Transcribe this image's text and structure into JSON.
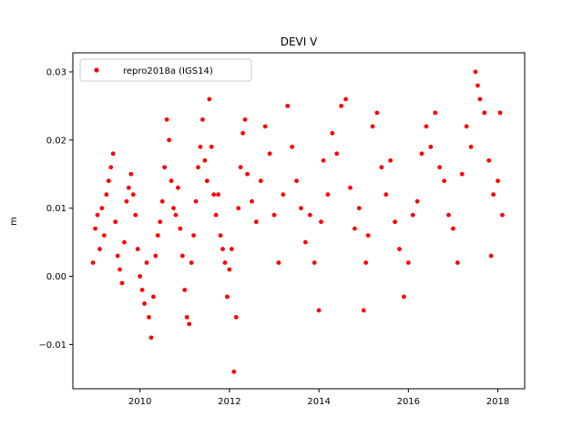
{
  "chart_data": {
    "type": "scatter",
    "title": "DEVI V",
    "xlabel": "",
    "ylabel": "m",
    "xlim": [
      2008.5,
      2018.6
    ],
    "ylim": [
      -0.0165,
      0.0328
    ],
    "x_ticks": [
      2010,
      2012,
      2014,
      2016,
      2018
    ],
    "x_tick_labels": [
      "2010",
      "2012",
      "2014",
      "2016",
      "2018"
    ],
    "y_ticks": [
      -0.01,
      0.0,
      0.01,
      0.02,
      0.03
    ],
    "y_tick_labels": [
      "−0.01",
      "0.00",
      "0.01",
      "0.02",
      "0.03"
    ],
    "grid": false,
    "legend_position": "upper left",
    "series": [
      {
        "name": "repro2018a (IGS14)",
        "color": "#ff0000",
        "marker": "dot",
        "points": [
          [
            2008.95,
            0.002
          ],
          [
            2009.0,
            0.007
          ],
          [
            2009.05,
            0.009
          ],
          [
            2009.1,
            0.004
          ],
          [
            2009.15,
            0.01
          ],
          [
            2009.2,
            0.006
          ],
          [
            2009.25,
            0.012
          ],
          [
            2009.3,
            0.014
          ],
          [
            2009.35,
            0.016
          ],
          [
            2009.4,
            0.018
          ],
          [
            2009.45,
            0.008
          ],
          [
            2009.5,
            0.003
          ],
          [
            2009.55,
            0.001
          ],
          [
            2009.6,
            -0.001
          ],
          [
            2009.65,
            0.005
          ],
          [
            2009.7,
            0.011
          ],
          [
            2009.75,
            0.013
          ],
          [
            2009.8,
            0.015
          ],
          [
            2009.85,
            0.012
          ],
          [
            2009.9,
            0.009
          ],
          [
            2009.95,
            0.004
          ],
          [
            2010.0,
            0.0
          ],
          [
            2010.05,
            -0.002
          ],
          [
            2010.1,
            -0.004
          ],
          [
            2010.15,
            0.002
          ],
          [
            2010.2,
            -0.006
          ],
          [
            2010.25,
            -0.009
          ],
          [
            2010.3,
            -0.003
          ],
          [
            2010.35,
            0.003
          ],
          [
            2010.4,
            0.006
          ],
          [
            2010.45,
            0.008
          ],
          [
            2010.5,
            0.011
          ],
          [
            2010.55,
            0.016
          ],
          [
            2010.6,
            0.023
          ],
          [
            2010.65,
            0.02
          ],
          [
            2010.7,
            0.014
          ],
          [
            2010.75,
            0.01
          ],
          [
            2010.8,
            0.009
          ],
          [
            2010.85,
            0.013
          ],
          [
            2010.9,
            0.007
          ],
          [
            2010.95,
            0.003
          ],
          [
            2011.0,
            -0.002
          ],
          [
            2011.05,
            -0.006
          ],
          [
            2011.1,
            -0.007
          ],
          [
            2011.15,
            0.002
          ],
          [
            2011.2,
            0.006
          ],
          [
            2011.25,
            0.011
          ],
          [
            2011.3,
            0.016
          ],
          [
            2011.35,
            0.019
          ],
          [
            2011.4,
            0.023
          ],
          [
            2011.45,
            0.017
          ],
          [
            2011.5,
            0.014
          ],
          [
            2011.55,
            0.026
          ],
          [
            2011.6,
            0.019
          ],
          [
            2011.65,
            0.012
          ],
          [
            2011.7,
            0.009
          ],
          [
            2011.75,
            0.012
          ],
          [
            2011.8,
            0.006
          ],
          [
            2011.85,
            0.004
          ],
          [
            2011.9,
            0.002
          ],
          [
            2011.95,
            -0.003
          ],
          [
            2012.0,
            0.001
          ],
          [
            2012.05,
            0.004
          ],
          [
            2012.1,
            -0.014
          ],
          [
            2012.15,
            -0.006
          ],
          [
            2012.2,
            0.01
          ],
          [
            2012.25,
            0.016
          ],
          [
            2012.3,
            0.021
          ],
          [
            2012.35,
            0.023
          ],
          [
            2012.4,
            0.015
          ],
          [
            2012.5,
            0.011
          ],
          [
            2012.6,
            0.008
          ],
          [
            2012.7,
            0.014
          ],
          [
            2012.8,
            0.022
          ],
          [
            2012.9,
            0.018
          ],
          [
            2013.0,
            0.009
          ],
          [
            2013.1,
            0.002
          ],
          [
            2013.2,
            0.012
          ],
          [
            2013.3,
            0.025
          ],
          [
            2013.4,
            0.019
          ],
          [
            2013.5,
            0.014
          ],
          [
            2013.6,
            0.01
          ],
          [
            2013.7,
            0.005
          ],
          [
            2013.8,
            0.009
          ],
          [
            2013.9,
            0.002
          ],
          [
            2014.0,
            -0.005
          ],
          [
            2014.05,
            0.008
          ],
          [
            2014.1,
            0.017
          ],
          [
            2014.2,
            0.012
          ],
          [
            2014.3,
            0.021
          ],
          [
            2014.4,
            0.018
          ],
          [
            2014.5,
            0.025
          ],
          [
            2014.6,
            0.026
          ],
          [
            2014.7,
            0.013
          ],
          [
            2014.8,
            0.007
          ],
          [
            2014.9,
            0.01
          ],
          [
            2015.0,
            -0.005
          ],
          [
            2015.05,
            0.002
          ],
          [
            2015.1,
            0.006
          ],
          [
            2015.2,
            0.022
          ],
          [
            2015.3,
            0.024
          ],
          [
            2015.4,
            0.016
          ],
          [
            2015.5,
            0.012
          ],
          [
            2015.6,
            0.017
          ],
          [
            2015.7,
            0.008
          ],
          [
            2015.8,
            0.004
          ],
          [
            2015.9,
            -0.003
          ],
          [
            2016.0,
            0.002
          ],
          [
            2016.1,
            0.009
          ],
          [
            2016.2,
            0.011
          ],
          [
            2016.3,
            0.018
          ],
          [
            2016.4,
            0.022
          ],
          [
            2016.5,
            0.019
          ],
          [
            2016.6,
            0.024
          ],
          [
            2016.7,
            0.016
          ],
          [
            2016.8,
            0.014
          ],
          [
            2016.9,
            0.009
          ],
          [
            2017.0,
            0.007
          ],
          [
            2017.1,
            0.002
          ],
          [
            2017.2,
            0.015
          ],
          [
            2017.3,
            0.022
          ],
          [
            2017.4,
            0.019
          ],
          [
            2017.5,
            0.03
          ],
          [
            2017.55,
            0.028
          ],
          [
            2017.6,
            0.026
          ],
          [
            2017.7,
            0.024
          ],
          [
            2017.8,
            0.017
          ],
          [
            2017.85,
            0.003
          ],
          [
            2017.9,
            0.012
          ],
          [
            2018.0,
            0.014
          ],
          [
            2018.05,
            0.024
          ],
          [
            2018.1,
            0.009
          ]
        ]
      }
    ]
  }
}
